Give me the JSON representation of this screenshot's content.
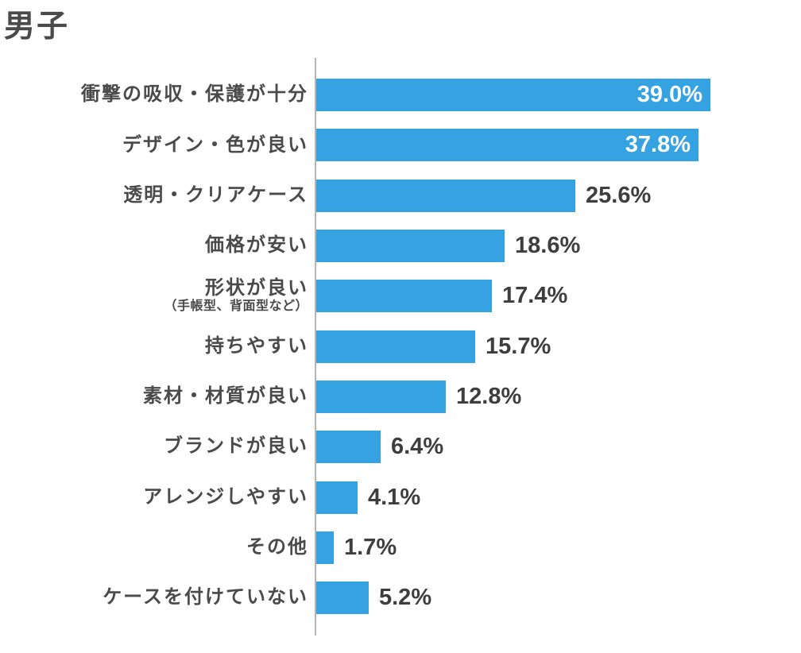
{
  "title": "男子",
  "chart_data": {
    "type": "bar",
    "orientation": "horizontal",
    "title": "男子",
    "categories": [
      "衝撃の吸収・保護が十分",
      "デザイン・色が良い",
      "透明・クリアケース",
      "価格が安い",
      "形状が良い",
      "持ちやすい",
      "素材・材質が良い",
      "ブランドが良い",
      "アレンジしやすい",
      "その他",
      "ケースを付けていない"
    ],
    "sublabels": [
      "",
      "",
      "",
      "",
      "（手帳型、背面型など）",
      "",
      "",
      "",
      "",
      "",
      ""
    ],
    "values": [
      39.0,
      37.8,
      25.6,
      18.6,
      17.4,
      15.7,
      12.8,
      6.4,
      4.1,
      1.7,
      5.2
    ],
    "value_labels": [
      "39.0%",
      "37.8%",
      "25.6%",
      "18.6%",
      "17.4%",
      "15.7%",
      "12.8%",
      "6.4%",
      "4.1%",
      "1.7%",
      "5.2%"
    ],
    "value_label_inside": [
      true,
      true,
      false,
      false,
      false,
      false,
      false,
      false,
      false,
      false,
      false
    ],
    "unit": "%",
    "xlim": [
      0,
      39
    ],
    "grid": false,
    "legend": false,
    "colors": {
      "bar": "#35a2e2",
      "axis_line": "#b5b5b5",
      "category_label": "#4a4a4a",
      "value_label_outside": "#3e3e3e",
      "value_label_inside": "#ffffff",
      "background": "#ffffff"
    }
  }
}
